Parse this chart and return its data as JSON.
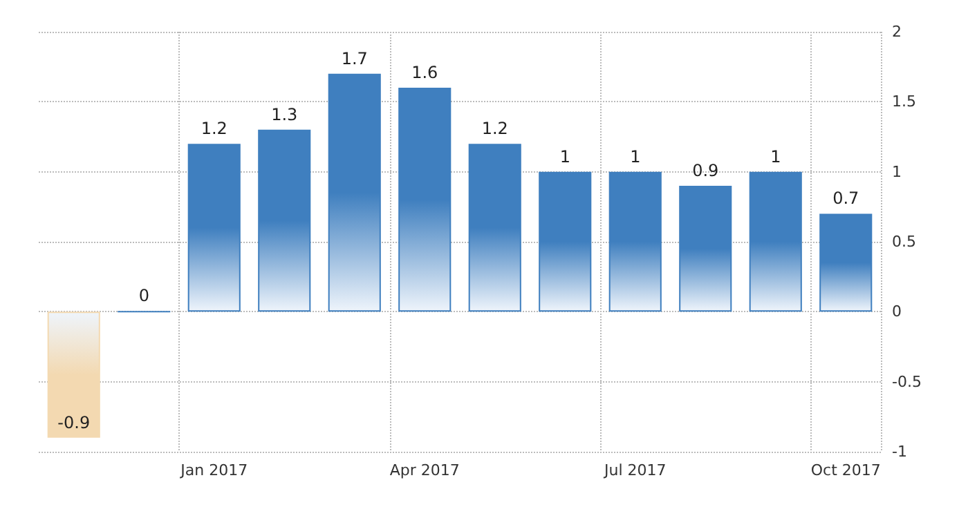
{
  "chart_data": {
    "type": "bar",
    "categories": [
      null,
      null,
      "Jan 2017",
      null,
      null,
      "Apr 2017",
      null,
      null,
      "Jul 2017",
      null,
      null,
      "Oct 2017"
    ],
    "values": [
      -0.9,
      0,
      1.2,
      1.3,
      1.7,
      1.6,
      1.2,
      1,
      1,
      0.9,
      1,
      0.7
    ],
    "colors": [
      "#f3d9b1",
      "#3f7fbf",
      "#3f7fbf",
      "#3f7fbf",
      "#3f7fbf",
      "#3f7fbf",
      "#3f7fbf",
      "#3f7fbf",
      "#3f7fbf",
      "#3f7fbf",
      "#3f7fbf",
      "#3f7fbf"
    ],
    "ylim": [
      -1,
      2
    ],
    "yticks": [
      -1,
      -0.5,
      0,
      0.5,
      1,
      1.5,
      2
    ],
    "grid": true,
    "data_labels": true
  }
}
